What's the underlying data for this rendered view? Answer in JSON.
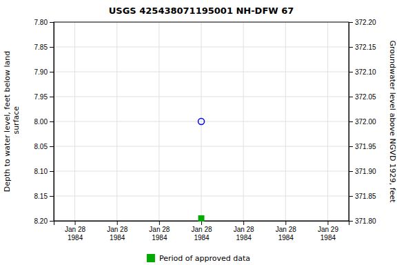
{
  "chart_data": {
    "type": "scatter",
    "title": "USGS 425438071195001 NH-DFW   67",
    "categories": [
      "Jan 28\n1984",
      "Jan 28\n1984",
      "Jan 28\n1984",
      "Jan 28\n1984",
      "Jan 28\n1984",
      "Jan 28\n1984",
      "Jan 29\n1984"
    ],
    "ylabel": "Depth to water level, feet below land\n surface",
    "y2label": "Groundwater level above NGVD 1929, feet",
    "ylim": [
      8.2,
      7.8
    ],
    "yticks": [
      {
        "value": 7.8,
        "label": "7.80"
      },
      {
        "value": 7.85,
        "label": "7.85"
      },
      {
        "value": 7.9,
        "label": "7.90"
      },
      {
        "value": 7.95,
        "label": "7.95"
      },
      {
        "value": 8.0,
        "label": "8.00"
      },
      {
        "value": 8.05,
        "label": "8.05"
      },
      {
        "value": 8.1,
        "label": "8.10"
      },
      {
        "value": 8.15,
        "label": "8.15"
      },
      {
        "value": 8.2,
        "label": "8.20"
      }
    ],
    "y2lim": [
      371.8,
      372.2
    ],
    "y2ticks": [
      {
        "value": 371.8,
        "label": "371.80"
      },
      {
        "value": 371.85,
        "label": "371.85"
      },
      {
        "value": 371.9,
        "label": "371.90"
      },
      {
        "value": 371.95,
        "label": "371.95"
      },
      {
        "value": 372.0,
        "label": "372.00"
      },
      {
        "value": 372.05,
        "label": "372.05"
      },
      {
        "value": 372.1,
        "label": "372.10"
      },
      {
        "value": 372.15,
        "label": "372.15"
      },
      {
        "value": 372.2,
        "label": "372.20"
      }
    ],
    "grid": true,
    "legend": "bottom",
    "series": [
      {
        "color": "blue",
        "marker": "open-circle",
        "values": [
          null,
          null,
          null,
          8.0,
          null,
          null,
          null
        ]
      },
      {
        "name": "Period of approved data",
        "color": "#00aa00",
        "marker": "square",
        "values": [
          null,
          null,
          null,
          8.195,
          null,
          null,
          null
        ]
      }
    ]
  }
}
